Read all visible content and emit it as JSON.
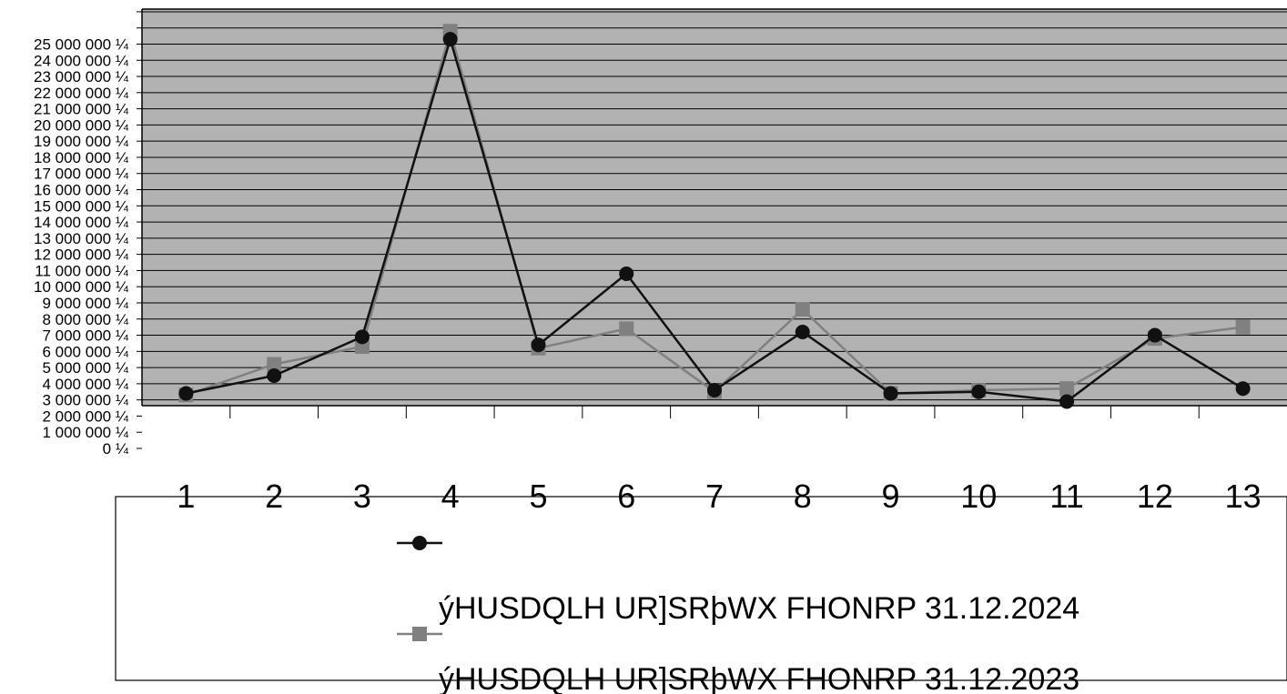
{
  "chart_data": {
    "type": "line",
    "x": [
      "1",
      "2",
      "3",
      "4",
      "5",
      "6",
      "7",
      "8",
      "9",
      "10",
      "11",
      "12",
      "13"
    ],
    "ylim": [
      0,
      28000000
    ],
    "y_ticks": [
      "0 ¼",
      "1 000 000 ¼",
      "2 000 000 ¼",
      "3 000 000 ¼",
      "4 000 000 ¼",
      "5 000 000 ¼",
      "6 000 000 ¼",
      "7 000 000 ¼",
      "8 000 000 ¼",
      "9 000 000 ¼",
      "10 000 000 ¼",
      "11 000 000 ¼",
      "12 000 000 ¼",
      "13 000 000 ¼",
      "14 000 000 ¼",
      "15 000 000 ¼",
      "16 000 000 ¼",
      "17 000 000 ¼",
      "18 000 000 ¼",
      "19 000 000 ¼",
      "20 000 000 ¼",
      "21 000 000 ¼",
      "22 000 000 ¼",
      "23 000 000 ¼",
      "24 000 000 ¼",
      "25 000 000 ¼"
    ],
    "grid": true,
    "legend_position": "bottom",
    "plot_background": "#b2b2b2",
    "series": [
      {
        "name": "ýHUSDQLH UR]SRþWX FHONRP 31.12.2024",
        "color": "#111111",
        "marker": "circle",
        "values": [
          3400000,
          4500000,
          6900000,
          25300000,
          6400000,
          10800000,
          3600000,
          7200000,
          3400000,
          3500000,
          2900000,
          7000000,
          3700000
        ]
      },
      {
        "name": "ýHUSDQLH UR]SRþWX FHONRP 31.12.2023",
        "color": "#808080",
        "marker": "square",
        "values": [
          3300000,
          5200000,
          6300000,
          25800000,
          6200000,
          7400000,
          3500000,
          8600000,
          3400000,
          3600000,
          3700000,
          6800000,
          7500000
        ]
      }
    ]
  }
}
